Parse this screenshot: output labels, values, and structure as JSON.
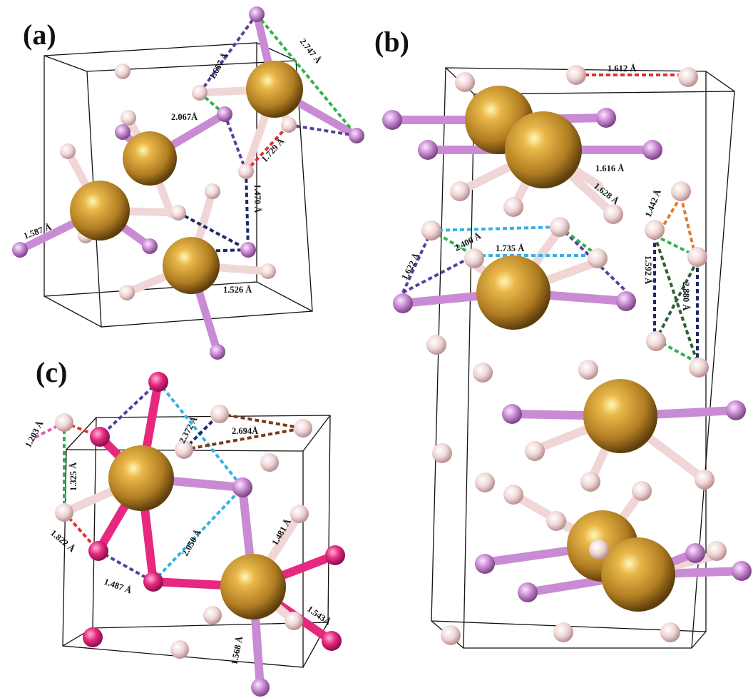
{
  "panels": [
    {
      "id": "a",
      "label": "(a)"
    },
    {
      "id": "b",
      "label": "(b)"
    },
    {
      "id": "c",
      "label": "(c)"
    }
  ],
  "distances": {
    "a": [
      "1.657 Å",
      "2.747 Å",
      "2.067Å",
      "1.729 Å",
      "1.470 Å",
      "1.587 Å",
      "1.526 Å"
    ],
    "b": [
      "1.612 Å",
      "1.616 Å",
      "1.628 Å",
      "1.442 Å",
      "2.400 Å",
      "1.622 Å",
      "1.735 Å",
      "1.592 Å",
      "2.880 Å"
    ],
    "c": [
      "1.203 Å",
      "2.372 Å",
      "2.694Å",
      "1.325 Å",
      "2.050 Å",
      "1.481 Å",
      "1.822 Å",
      "1.487 Å",
      "1.543Å",
      "1.568 Å"
    ]
  },
  "colors": {
    "metal": "#b8862b",
    "hydrogen": "#f0d6d6",
    "ligand_violet": "#c98bd3",
    "ligand_magenta": "#e6287f",
    "cell_line": "#111111",
    "dash_green": "#2fb34e",
    "dash_purple": "#5a3d9e",
    "dash_red": "#e3302b",
    "dash_navy": "#1d2a63",
    "dash_blue": "#33b2e6",
    "dash_orange": "#e07a2e",
    "dash_darkgreen": "#2e5e34",
    "dash_brown": "#7a3a17",
    "dash_pink": "#d85fae"
  }
}
